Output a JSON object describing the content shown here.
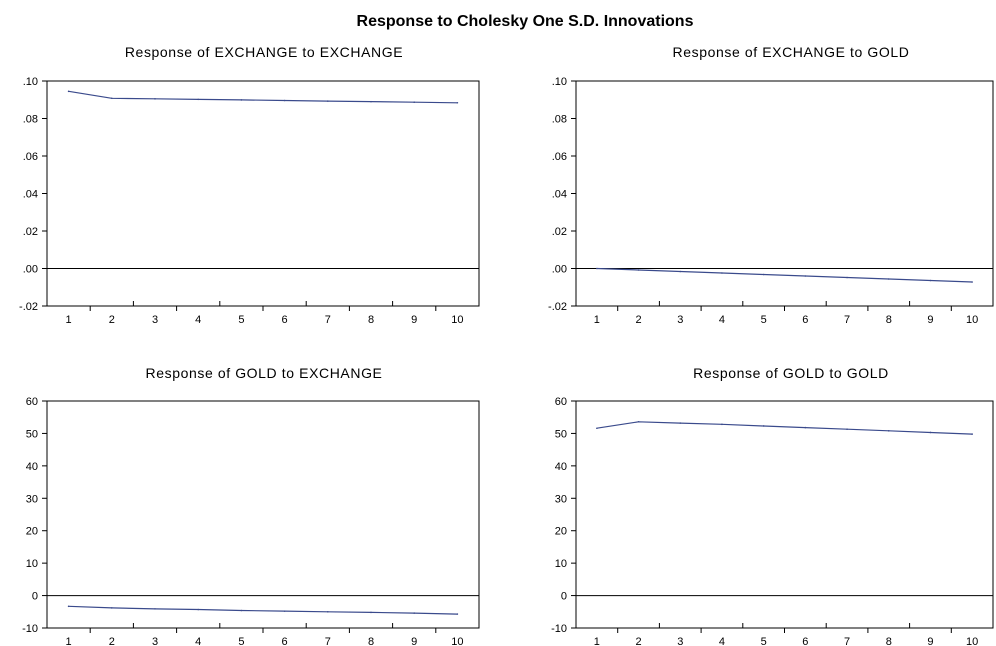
{
  "figure": {
    "title": "Response to Cholesky One S.D. Innovations"
  },
  "colors": {
    "line": "#3a4a8c",
    "axis": "#000000",
    "background": "#ffffff"
  },
  "chart_data": [
    {
      "type": "line",
      "title": "Response of EXCHANGE to EXCHANGE",
      "x": [
        1,
        2,
        3,
        4,
        5,
        6,
        7,
        8,
        9,
        10
      ],
      "series": [
        {
          "values": [
            0.0945,
            0.0908,
            0.0905,
            0.0902,
            0.0899,
            0.0896,
            0.0893,
            0.089,
            0.0887,
            0.0884
          ]
        }
      ],
      "ylim": [
        -0.02,
        0.1
      ],
      "yticks": [
        ".10",
        ".08",
        ".06",
        ".04",
        ".02",
        ".00",
        "-.02"
      ],
      "xticks": [
        "1",
        "2",
        "3",
        "4",
        "5",
        "6",
        "7",
        "8",
        "9",
        "10"
      ],
      "zero_line": true,
      "grid": false
    },
    {
      "type": "line",
      "title": "Response of EXCHANGE to GOLD",
      "x": [
        1,
        2,
        3,
        4,
        5,
        6,
        7,
        8,
        9,
        10
      ],
      "series": [
        {
          "values": [
            0.0,
            -0.0008,
            -0.0016,
            -0.0024,
            -0.0032,
            -0.004,
            -0.0048,
            -0.0056,
            -0.0064,
            -0.0072
          ]
        }
      ],
      "ylim": [
        -0.02,
        0.1
      ],
      "yticks": [
        ".10",
        ".08",
        ".06",
        ".04",
        ".02",
        ".00",
        "-.02"
      ],
      "xticks": [
        "1",
        "2",
        "3",
        "4",
        "5",
        "6",
        "7",
        "8",
        "9",
        "10"
      ],
      "zero_line": true,
      "grid": false
    },
    {
      "type": "line",
      "title": "Response of GOLD to EXCHANGE",
      "x": [
        1,
        2,
        3,
        4,
        5,
        6,
        7,
        8,
        9,
        10
      ],
      "series": [
        {
          "values": [
            -3.3,
            -3.8,
            -4.1,
            -4.3,
            -4.6,
            -4.8,
            -5.0,
            -5.2,
            -5.4,
            -5.7
          ]
        }
      ],
      "ylim": [
        -10,
        60
      ],
      "yticks": [
        "60",
        "50",
        "40",
        "30",
        "20",
        "10",
        "0",
        "-10"
      ],
      "xticks": [
        "1",
        "2",
        "3",
        "4",
        "5",
        "6",
        "7",
        "8",
        "9",
        "10"
      ],
      "zero_line": true,
      "grid": false
    },
    {
      "type": "line",
      "title": "Response of GOLD to GOLD",
      "x": [
        1,
        2,
        3,
        4,
        5,
        6,
        7,
        8,
        9,
        10
      ],
      "series": [
        {
          "values": [
            51.6,
            53.6,
            53.2,
            52.8,
            52.3,
            51.8,
            51.3,
            50.8,
            50.3,
            49.8
          ]
        }
      ],
      "ylim": [
        -10,
        60
      ],
      "yticks": [
        "60",
        "50",
        "40",
        "30",
        "20",
        "10",
        "0",
        "-10"
      ],
      "xticks": [
        "1",
        "2",
        "3",
        "4",
        "5",
        "6",
        "7",
        "8",
        "9",
        "10"
      ],
      "zero_line": true,
      "grid": false
    }
  ]
}
